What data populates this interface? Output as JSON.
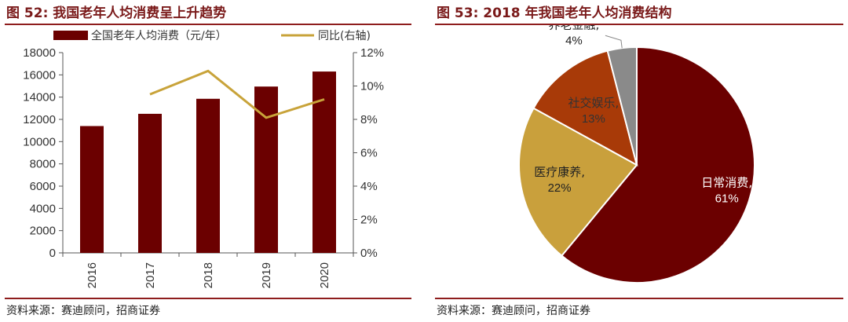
{
  "left": {
    "title": "图 52:  我国老年人均消费呈上升趋势",
    "source": "资料来源：赛迪顾问，招商证券",
    "chart_data": {
      "type": "bar",
      "categories": [
        "2016",
        "2017",
        "2018",
        "2019",
        "2020"
      ],
      "series": [
        {
          "name": "全国老年人均消费（元/年）",
          "type": "bar",
          "axis": "left",
          "values": [
            11400,
            12500,
            13850,
            14950,
            16300
          ],
          "color": "#6b0000"
        },
        {
          "name": "同比(右轴)",
          "type": "line",
          "axis": "right",
          "values": [
            null,
            9.5,
            10.9,
            8.1,
            9.2
          ],
          "color": "#c8a33a"
        }
      ],
      "y_left": {
        "min": 0,
        "max": 18000,
        "step": 2000,
        "ticks": [
          "0",
          "2000",
          "4000",
          "6000",
          "8000",
          "10000",
          "12000",
          "14000",
          "16000",
          "18000"
        ]
      },
      "y_right": {
        "min": 0,
        "max": 12,
        "step": 2,
        "ticks": [
          "0%",
          "2%",
          "4%",
          "6%",
          "8%",
          "10%",
          "12%"
        ]
      },
      "legend_position": "top",
      "grid": false
    }
  },
  "right": {
    "title": "图 53:  2018 年我国老年人均消费结构",
    "source": "资料来源：赛迪顾问，招商证券",
    "chart_data": {
      "type": "pie",
      "slices": [
        {
          "label": "日常消费,",
          "percent_label": "61%",
          "value": 61,
          "color": "#6b0000",
          "label_color": "#ffffff"
        },
        {
          "label": "医疗康养,",
          "percent_label": "22%",
          "value": 22,
          "color": "#c9a03c",
          "label_color": "#222222"
        },
        {
          "label": "社交娱乐,",
          "percent_label": "13%",
          "value": 13,
          "color": "#a83a08",
          "label_color": "#333333"
        },
        {
          "label": "养老金融,",
          "percent_label": "4%",
          "value": 4,
          "color": "#8a8a8a",
          "label_color": "#222222"
        }
      ]
    }
  }
}
